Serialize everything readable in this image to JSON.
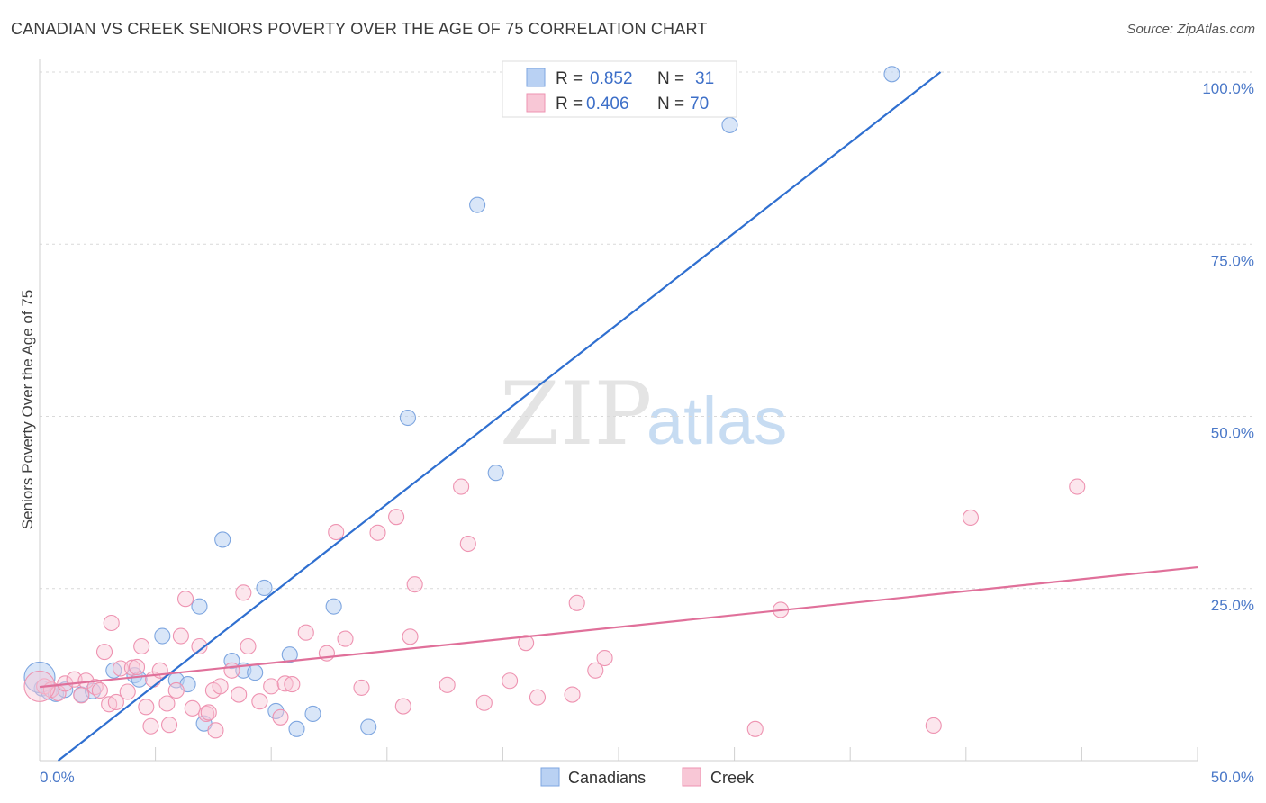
{
  "header": {
    "title": "CANADIAN VS CREEK SENIORS POVERTY OVER THE AGE OF 75 CORRELATION CHART",
    "source": "Source: ZipAtlas.com"
  },
  "watermark": {
    "zip": "ZIP",
    "atlas": "atlas"
  },
  "legend": {
    "r_label": "R =",
    "n_label": "N =",
    "rows": [
      {
        "name": "Canadians",
        "r": "0.852",
        "n": "31"
      },
      {
        "name": "Creek",
        "r": "0.406",
        "n": "70"
      }
    ]
  },
  "chart_data": {
    "type": "scatter",
    "title": "CANADIAN VS CREEK SENIORS POVERTY OVER THE AGE OF 75 CORRELATION CHART",
    "xlabel": "",
    "ylabel": "Seniors Poverty Over the Age of 75",
    "xlim": [
      0,
      50
    ],
    "ylim": [
      0,
      100
    ],
    "x_ticks": [
      0,
      50
    ],
    "x_tick_labels": [
      "0.0%",
      "50.0%"
    ],
    "y_ticks": [
      25,
      50,
      75,
      100
    ],
    "y_tick_labels": [
      "25.0%",
      "50.0%",
      "75.0%",
      "100.0%"
    ],
    "grid": "horizontal dashed",
    "legend_position": "top-center",
    "colors": {
      "Canadians": "#6f9ee0",
      "Creek": "#ee8fae",
      "Canadians_line": "#2f6fd0",
      "Creek_line": "#e0709a"
    },
    "series": [
      {
        "name": "Canadians",
        "points": [
          [
            0.1,
            10.5
          ],
          [
            0.4,
            10.0
          ],
          [
            0.7,
            9.7
          ],
          [
            1.1,
            10.3
          ],
          [
            1.8,
            9.6
          ],
          [
            2.3,
            10.1
          ],
          [
            3.2,
            13.1
          ],
          [
            4.1,
            12.4
          ],
          [
            4.3,
            11.8
          ],
          [
            5.3,
            18.1
          ],
          [
            5.9,
            11.7
          ],
          [
            6.4,
            11.1
          ],
          [
            6.9,
            22.4
          ],
          [
            7.1,
            5.4
          ],
          [
            7.9,
            32.1
          ],
          [
            8.3,
            14.5
          ],
          [
            8.8,
            13.1
          ],
          [
            9.3,
            12.8
          ],
          [
            9.7,
            25.1
          ],
          [
            10.2,
            7.2
          ],
          [
            10.8,
            15.4
          ],
          [
            11.1,
            4.6
          ],
          [
            11.8,
            6.8
          ],
          [
            12.7,
            22.4
          ],
          [
            14.2,
            4.9
          ],
          [
            15.9,
            49.8
          ],
          [
            18.9,
            80.7
          ],
          [
            19.7,
            41.8
          ],
          [
            29.8,
            92.3
          ],
          [
            36.8,
            99.7
          ],
          [
            0.0,
            12.1
          ]
        ]
      },
      {
        "name": "Creek",
        "points": [
          [
            0.2,
            10.8
          ],
          [
            0.5,
            10.3
          ],
          [
            0.8,
            9.8
          ],
          [
            1.1,
            11.2
          ],
          [
            1.5,
            11.8
          ],
          [
            1.8,
            9.5
          ],
          [
            2.0,
            11.6
          ],
          [
            2.4,
            10.7
          ],
          [
            2.6,
            10.2
          ],
          [
            2.8,
            15.8
          ],
          [
            3.0,
            8.2
          ],
          [
            3.1,
            20.0
          ],
          [
            3.3,
            8.5
          ],
          [
            3.5,
            13.4
          ],
          [
            3.8,
            10.0
          ],
          [
            4.0,
            13.5
          ],
          [
            4.2,
            13.6
          ],
          [
            4.4,
            16.6
          ],
          [
            4.6,
            7.8
          ],
          [
            4.8,
            5.0
          ],
          [
            4.9,
            11.8
          ],
          [
            5.2,
            13.1
          ],
          [
            5.5,
            8.3
          ],
          [
            5.6,
            5.2
          ],
          [
            5.9,
            10.2
          ],
          [
            6.1,
            18.1
          ],
          [
            6.3,
            23.5
          ],
          [
            6.6,
            7.6
          ],
          [
            6.9,
            16.6
          ],
          [
            7.2,
            6.8
          ],
          [
            7.3,
            7.0
          ],
          [
            7.5,
            10.2
          ],
          [
            7.6,
            4.4
          ],
          [
            7.8,
            10.8
          ],
          [
            8.3,
            13.1
          ],
          [
            8.6,
            9.6
          ],
          [
            8.8,
            24.4
          ],
          [
            9.0,
            16.6
          ],
          [
            9.5,
            8.6
          ],
          [
            10.0,
            10.8
          ],
          [
            10.4,
            6.3
          ],
          [
            10.6,
            11.2
          ],
          [
            10.9,
            11.1
          ],
          [
            11.5,
            18.6
          ],
          [
            12.4,
            15.6
          ],
          [
            12.8,
            33.2
          ],
          [
            13.2,
            17.7
          ],
          [
            13.9,
            10.6
          ],
          [
            14.6,
            33.1
          ],
          [
            15.4,
            35.4
          ],
          [
            15.7,
            7.9
          ],
          [
            16.0,
            18.0
          ],
          [
            16.2,
            25.6
          ],
          [
            17.6,
            11.0
          ],
          [
            18.2,
            39.8
          ],
          [
            18.5,
            31.5
          ],
          [
            19.2,
            8.4
          ],
          [
            20.3,
            11.6
          ],
          [
            21.0,
            17.1
          ],
          [
            21.5,
            9.2
          ],
          [
            23.0,
            9.6
          ],
          [
            23.2,
            22.9
          ],
          [
            24.0,
            13.1
          ],
          [
            24.4,
            14.9
          ],
          [
            30.9,
            4.6
          ],
          [
            32.0,
            21.9
          ],
          [
            38.6,
            5.1
          ],
          [
            40.2,
            35.3
          ],
          [
            44.8,
            39.8
          ],
          [
            0.0,
            10.8
          ]
        ]
      }
    ],
    "trend_lines": [
      {
        "name": "Canadians",
        "x": [
          0.8,
          38.9
        ],
        "y": [
          0.0,
          100.0
        ]
      },
      {
        "name": "Creek",
        "x": [
          0.0,
          50.0
        ],
        "y": [
          10.7,
          28.1
        ]
      }
    ]
  }
}
